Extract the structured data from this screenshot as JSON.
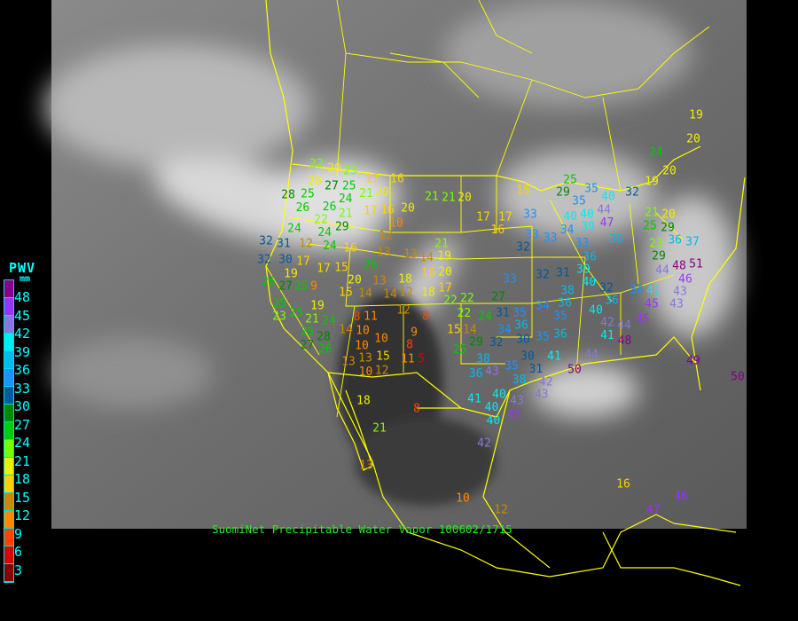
{
  "legend": {
    "title": "PWV",
    "unit": "mm",
    "labels": [
      "48",
      "45",
      "42",
      "39",
      "36",
      "33",
      "30",
      "27",
      "24",
      "21",
      "18",
      "15",
      "12",
      "9",
      "6",
      "3"
    ],
    "colors": [
      "#880088",
      "#9933ff",
      "#8877dd",
      "#00eeee",
      "#00bbee",
      "#1e90ff",
      "#005a9c",
      "#008800",
      "#00cc00",
      "#77ff00",
      "#eeee00",
      "#ffd000",
      "#cc8800",
      "#ff8800",
      "#ff4400",
      "#dd0000",
      "#880000"
    ]
  },
  "caption": "SuomiNet Precipitable Water Vapor 100602/1715",
  "border_color": "#ffff00",
  "stations": [
    22,
    20,
    23,
    17,
    16,
    20,
    27,
    25,
    24,
    21,
    20,
    28,
    25,
    21,
    21,
    20,
    26,
    26,
    21,
    17,
    16,
    20,
    22,
    24,
    29,
    10,
    24,
    24,
    12,
    32,
    31,
    12,
    16,
    21,
    13,
    13,
    14,
    19,
    26,
    30,
    17,
    32,
    19,
    17,
    15,
    16,
    20,
    18,
    20,
    13,
    27,
    25,
    9,
    26,
    15,
    14,
    14,
    12,
    18,
    17,
    22,
    25,
    12,
    8,
    22,
    11,
    25,
    23,
    21,
    19,
    24,
    14,
    10,
    8,
    9,
    15,
    14,
    10,
    8,
    29,
    25,
    25,
    10,
    13,
    15,
    11,
    5,
    13,
    10,
    12,
    28,
    27,
    26,
    25,
    29,
    35,
    32,
    19,
    15,
    35,
    40,
    40,
    44,
    40,
    47,
    39,
    33,
    34,
    17,
    17,
    16,
    21,
    20,
    25,
    29,
    33,
    33,
    32,
    33,
    36,
    23,
    29,
    36,
    37,
    36,
    39,
    32,
    31,
    33,
    40,
    44,
    48,
    51,
    46,
    43,
    38,
    32,
    34,
    41,
    27,
    36,
    36,
    34,
    35,
    45,
    43,
    31,
    35,
    24,
    22,
    40,
    36,
    45,
    34,
    42,
    44,
    41,
    48,
    32,
    35,
    36,
    30,
    41,
    44,
    30,
    49,
    38,
    43,
    36,
    35,
    31,
    50,
    38,
    42,
    43,
    40,
    41,
    40,
    43,
    40,
    45,
    19,
    20,
    24,
    20,
    18,
    21,
    8,
    10,
    16,
    12,
    13,
    42,
    50,
    47,
    46
  ]
}
